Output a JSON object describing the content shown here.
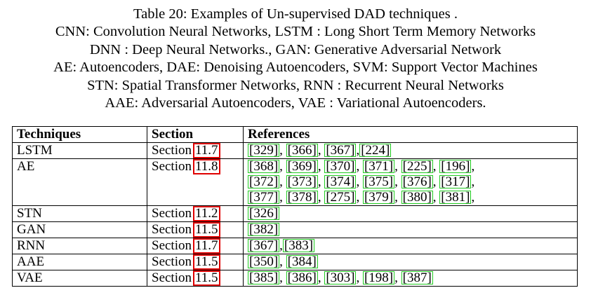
{
  "caption": [
    "Table 20: Examples of Un-supervised DAD techniques .",
    "CNN: Convolution Neural Networks, LSTM : Long Short Term Memory Networks",
    "DNN : Deep Neural Networks., GAN: Generative Adversarial Network",
    "AE: Autoencoders, DAE: Denoising Autoencoders, SVM: Support Vector Machines",
    "STN: Spatial Transformer Networks, RNN : Recurrent Neural Networks",
    "AAE: Adversarial Autoencoders, VAE : Variational Autoencoders."
  ],
  "headers": [
    "Techniques",
    "Section",
    "References"
  ],
  "section_word": "Section",
  "colors": {
    "section_link_box": "#e00000",
    "citation_link_box": "#22cc22"
  },
  "rows": [
    {
      "technique": "LSTM",
      "section": "11.7",
      "ref_lines": [
        [
          "[329]",
          "[366]",
          "[367]",
          "[224]"
        ]
      ],
      "seps": [
        [
          ", ",
          ", ",
          ","
        ]
      ]
    },
    {
      "technique": "AE",
      "section": "11.8",
      "ref_lines": [
        [
          "[368]",
          "[369]",
          "[370]",
          "[371]",
          "[225]",
          "[196]"
        ],
        [
          "[372]",
          "[373]",
          "[374]",
          "[375]",
          "[376]",
          "[317]"
        ],
        [
          "[377]",
          "[378]",
          "[275]",
          "[379]",
          "[380]",
          "[381]"
        ]
      ],
      "seps": [
        [
          ", ",
          ", ",
          ", ",
          ", ",
          ", ",
          ", ",
          ","
        ],
        [
          ", ",
          ", ",
          ", ",
          ", ",
          ", ",
          ", ",
          ","
        ],
        [
          ", ",
          ", ",
          ", ",
          ", ",
          ", ",
          ","
        ]
      ]
    },
    {
      "technique": "STN",
      "section": "11.2",
      "ref_lines": [
        [
          "[326]"
        ]
      ],
      "seps": [
        []
      ]
    },
    {
      "technique": "GAN",
      "section": "11.5",
      "ref_lines": [
        [
          "[382]"
        ]
      ],
      "seps": [
        []
      ]
    },
    {
      "technique": "RNN",
      "section": "11.7",
      "ref_lines": [
        [
          "[367]",
          "[383]"
        ]
      ],
      "seps": [
        [
          ","
        ]
      ]
    },
    {
      "technique": "AAE",
      "section": "11.5",
      "ref_lines": [
        [
          "[350]",
          "[384]"
        ]
      ],
      "seps": [
        [
          ", "
        ]
      ]
    },
    {
      "technique": "VAE",
      "section": "11.5",
      "ref_lines": [
        [
          "[385]",
          "[386]",
          "[303]",
          "[198]",
          "[387]"
        ]
      ],
      "seps": [
        [
          ", ",
          ", ",
          ", ",
          ", "
        ]
      ]
    }
  ]
}
